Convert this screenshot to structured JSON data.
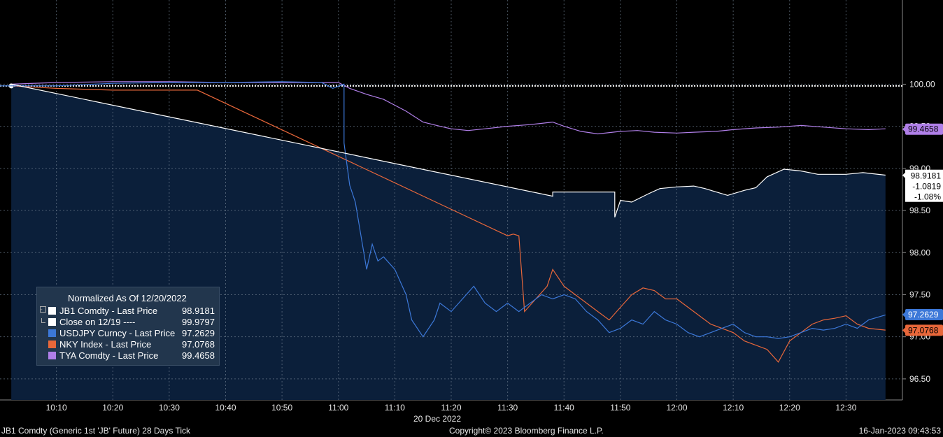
{
  "chart_data": {
    "type": "line",
    "date_label": "20 Dec 2022",
    "x_ticks": [
      "10:10",
      "10:20",
      "10:30",
      "10:40",
      "10:50",
      "11:00",
      "11:10",
      "11:20",
      "11:30",
      "11:40",
      "11:50",
      "12:00",
      "12:10",
      "12:20",
      "12:30"
    ],
    "y_ticks": [
      "100.00",
      "99.50",
      "99.00",
      "98.50",
      "98.00",
      "97.50",
      "97.00",
      "96.50"
    ],
    "ylim": [
      96.25,
      101.0
    ],
    "xlim": [
      "10:00",
      "12:40"
    ],
    "grid": true,
    "series": [
      {
        "name": "JB1 Comdty - Last Price",
        "color": "#ffffff",
        "value_label": "98.9181",
        "points": [
          [
            "10:02",
            100.0
          ],
          [
            "11:38",
            98.67
          ],
          [
            "11:38",
            98.72
          ],
          [
            "11:49",
            98.72
          ],
          [
            "11:49",
            98.42
          ],
          [
            "11:50",
            98.62
          ],
          [
            "11:52",
            98.6
          ],
          [
            "11:55",
            98.7
          ],
          [
            "11:57",
            98.76
          ],
          [
            "12:00",
            98.78
          ],
          [
            "12:03",
            98.79
          ],
          [
            "12:05",
            98.76
          ],
          [
            "12:07",
            98.72
          ],
          [
            "12:09",
            98.68
          ],
          [
            "12:12",
            98.74
          ],
          [
            "12:14",
            98.77
          ],
          [
            "12:16",
            98.9
          ],
          [
            "12:19",
            98.99
          ],
          [
            "12:22",
            98.97
          ],
          [
            "12:25",
            98.93
          ],
          [
            "12:30",
            98.93
          ],
          [
            "12:33",
            98.95
          ],
          [
            "12:37",
            98.92
          ]
        ]
      },
      {
        "name": "USDJPY Curncy - Last Price",
        "color": "#3c78d8",
        "value_label": "97.2629",
        "points": [
          [
            "10:00",
            99.98
          ],
          [
            "10:10",
            99.98
          ],
          [
            "10:20",
            100.01
          ],
          [
            "10:30",
            100.02
          ],
          [
            "10:40",
            100.02
          ],
          [
            "10:50",
            100.03
          ],
          [
            "10:57",
            100.02
          ],
          [
            "10:59",
            99.95
          ],
          [
            "11:01",
            100.0
          ],
          [
            "11:01",
            99.3
          ],
          [
            "11:02",
            98.8
          ],
          [
            "11:03",
            98.6
          ],
          [
            "11:04",
            98.2
          ],
          [
            "11:05",
            97.8
          ],
          [
            "11:06",
            98.1
          ],
          [
            "11:07",
            97.9
          ],
          [
            "11:08",
            97.95
          ],
          [
            "11:10",
            97.8
          ],
          [
            "11:12",
            97.5
          ],
          [
            "11:13",
            97.2
          ],
          [
            "11:15",
            97.0
          ],
          [
            "11:17",
            97.2
          ],
          [
            "11:18",
            97.4
          ],
          [
            "11:20",
            97.3
          ],
          [
            "11:22",
            97.45
          ],
          [
            "11:24",
            97.6
          ],
          [
            "11:26",
            97.4
          ],
          [
            "11:28",
            97.3
          ],
          [
            "11:30",
            97.4
          ],
          [
            "11:32",
            97.3
          ],
          [
            "11:34",
            97.4
          ],
          [
            "11:36",
            97.5
          ],
          [
            "11:38",
            97.45
          ],
          [
            "11:40",
            97.5
          ],
          [
            "11:42",
            97.45
          ],
          [
            "11:44",
            97.3
          ],
          [
            "11:46",
            97.2
          ],
          [
            "11:48",
            97.05
          ],
          [
            "11:50",
            97.1
          ],
          [
            "11:52",
            97.2
          ],
          [
            "11:54",
            97.15
          ],
          [
            "11:56",
            97.3
          ],
          [
            "11:58",
            97.2
          ],
          [
            "12:00",
            97.15
          ],
          [
            "12:02",
            97.05
          ],
          [
            "12:04",
            97.0
          ],
          [
            "12:06",
            97.05
          ],
          [
            "12:08",
            97.1
          ],
          [
            "12:10",
            97.15
          ],
          [
            "12:12",
            97.05
          ],
          [
            "12:14",
            97.0
          ],
          [
            "12:16",
            97.0
          ],
          [
            "12:18",
            96.98
          ],
          [
            "12:20",
            97.0
          ],
          [
            "12:22",
            97.05
          ],
          [
            "12:24",
            97.1
          ],
          [
            "12:26",
            97.08
          ],
          [
            "12:28",
            97.1
          ],
          [
            "12:30",
            97.15
          ],
          [
            "12:32",
            97.1
          ],
          [
            "12:34",
            97.2
          ],
          [
            "12:37",
            97.26
          ]
        ]
      },
      {
        "name": "NKY Index - Last Price",
        "color": "#e8673a",
        "value_label": "97.0768",
        "points": [
          [
            "10:02",
            99.98
          ],
          [
            "10:10",
            99.95
          ],
          [
            "10:20",
            99.93
          ],
          [
            "10:35",
            99.93
          ],
          [
            "11:30",
            98.2
          ],
          [
            "11:31",
            98.22
          ],
          [
            "11:32",
            98.2
          ],
          [
            "11:33",
            97.3
          ],
          [
            "11:35",
            97.45
          ],
          [
            "11:37",
            97.6
          ],
          [
            "11:38",
            97.8
          ],
          [
            "11:40",
            97.6
          ],
          [
            "11:42",
            97.5
          ],
          [
            "11:44",
            97.4
          ],
          [
            "11:46",
            97.3
          ],
          [
            "11:48",
            97.2
          ],
          [
            "11:50",
            97.35
          ],
          [
            "11:52",
            97.5
          ],
          [
            "11:54",
            97.58
          ],
          [
            "11:56",
            97.55
          ],
          [
            "11:58",
            97.45
          ],
          [
            "12:00",
            97.45
          ],
          [
            "12:02",
            97.35
          ],
          [
            "12:04",
            97.25
          ],
          [
            "12:06",
            97.15
          ],
          [
            "12:08",
            97.1
          ],
          [
            "12:10",
            97.05
          ],
          [
            "12:12",
            96.95
          ],
          [
            "12:14",
            96.9
          ],
          [
            "12:16",
            96.85
          ],
          [
            "12:18",
            96.7
          ],
          [
            "12:20",
            96.95
          ],
          [
            "12:22",
            97.05
          ],
          [
            "12:24",
            97.15
          ],
          [
            "12:26",
            97.2
          ],
          [
            "12:28",
            97.22
          ],
          [
            "12:30",
            97.25
          ],
          [
            "12:32",
            97.15
          ],
          [
            "12:34",
            97.1
          ],
          [
            "12:37",
            97.08
          ]
        ]
      },
      {
        "name": "TYA Comdty - Last Price",
        "color": "#b07fe8",
        "value_label": "99.4658",
        "points": [
          [
            "10:02",
            100.0
          ],
          [
            "10:10",
            100.02
          ],
          [
            "10:20",
            100.03
          ],
          [
            "10:30",
            100.03
          ],
          [
            "10:40",
            100.02
          ],
          [
            "10:50",
            100.02
          ],
          [
            "11:00",
            100.02
          ],
          [
            "11:02",
            99.95
          ],
          [
            "11:05",
            99.88
          ],
          [
            "11:08",
            99.82
          ],
          [
            "11:10",
            99.75
          ],
          [
            "11:12",
            99.68
          ],
          [
            "11:15",
            99.55
          ],
          [
            "11:18",
            99.5
          ],
          [
            "11:20",
            99.47
          ],
          [
            "11:23",
            99.45
          ],
          [
            "11:26",
            99.47
          ],
          [
            "11:30",
            99.5
          ],
          [
            "11:34",
            99.52
          ],
          [
            "11:38",
            99.55
          ],
          [
            "11:40",
            99.5
          ],
          [
            "11:43",
            99.44
          ],
          [
            "11:46",
            99.41
          ],
          [
            "11:50",
            99.44
          ],
          [
            "11:53",
            99.45
          ],
          [
            "11:56",
            99.43
          ],
          [
            "12:00",
            99.42
          ],
          [
            "12:03",
            99.43
          ],
          [
            "12:07",
            99.44
          ],
          [
            "12:10",
            99.46
          ],
          [
            "12:14",
            99.48
          ],
          [
            "12:18",
            99.49
          ],
          [
            "12:22",
            99.51
          ],
          [
            "12:26",
            99.49
          ],
          [
            "12:30",
            99.47
          ],
          [
            "12:34",
            99.46
          ],
          [
            "12:37",
            99.47
          ]
        ]
      }
    ],
    "close_ref": {
      "name": "Close on 12/19 ----",
      "value": 99.9797,
      "value_label": "99.9797",
      "color": "#ffffff"
    },
    "jb_change_labels": [
      "-1.0819",
      "-1.08%"
    ],
    "legend": {
      "title": "Normalized As Of 12/20/2022",
      "items": [
        {
          "label": "JB1 Comdty - Last Price",
          "value": "98.9181",
          "color": "#ffffff"
        },
        {
          "label": "Close on 12/19 ----",
          "value": "99.9797",
          "color": "#ffffff"
        },
        {
          "label": "USDJPY Curncy - Last Price",
          "value": "97.2629",
          "color": "#3c78d8"
        },
        {
          "label": "NKY Index - Last Price",
          "value": "97.0768",
          "color": "#e8673a"
        },
        {
          "label": "TYA Comdty - Last Price",
          "value": "99.4658",
          "color": "#b07fe8"
        }
      ]
    }
  },
  "footer": {
    "left": "JB1 Comdty (Generic 1st 'JB' Future) 28 Days  Tick",
    "center": "Copyright© 2023 Bloomberg Finance L.P.",
    "right": "16-Jan-2023 09:43:53"
  }
}
